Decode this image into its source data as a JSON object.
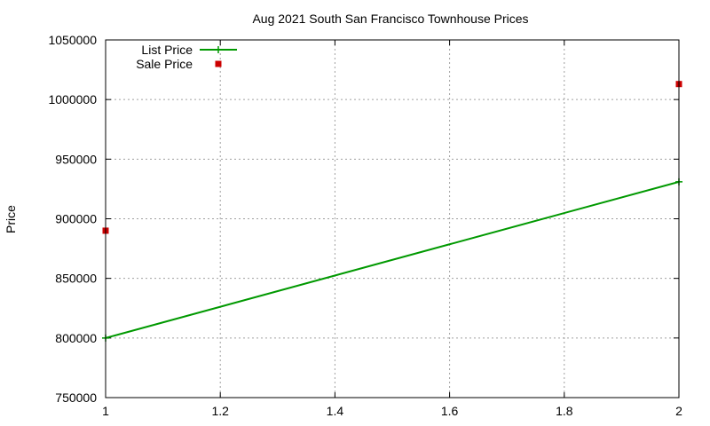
{
  "chart_data": {
    "type": "line",
    "title": "Aug 2021 South San Francisco Townhouse Prices",
    "xlabel": "",
    "ylabel": "Price",
    "xlim": [
      1,
      2
    ],
    "ylim": [
      750000,
      1050000
    ],
    "xticks": [
      "1",
      "1.2",
      "1.4",
      "1.6",
      "1.8",
      "2"
    ],
    "xtick_values": [
      1,
      1.2,
      1.4,
      1.6,
      1.8,
      2
    ],
    "yticks": [
      "750000",
      "800000",
      "850000",
      "900000",
      "950000",
      "1000000",
      "1050000"
    ],
    "ytick_values": [
      750000,
      800000,
      850000,
      900000,
      950000,
      1000000,
      1050000
    ],
    "grid": true,
    "legend_position": "top-left",
    "series": [
      {
        "name": "List Price",
        "style": "line-with-plus-markers",
        "color": "#009900",
        "x": [
          1,
          2
        ],
        "y": [
          800000,
          931000
        ]
      },
      {
        "name": "Sale Price",
        "style": "square-markers",
        "color": "#cc0000",
        "x": [
          1,
          2
        ],
        "y": [
          890000,
          1013000
        ]
      }
    ]
  }
}
